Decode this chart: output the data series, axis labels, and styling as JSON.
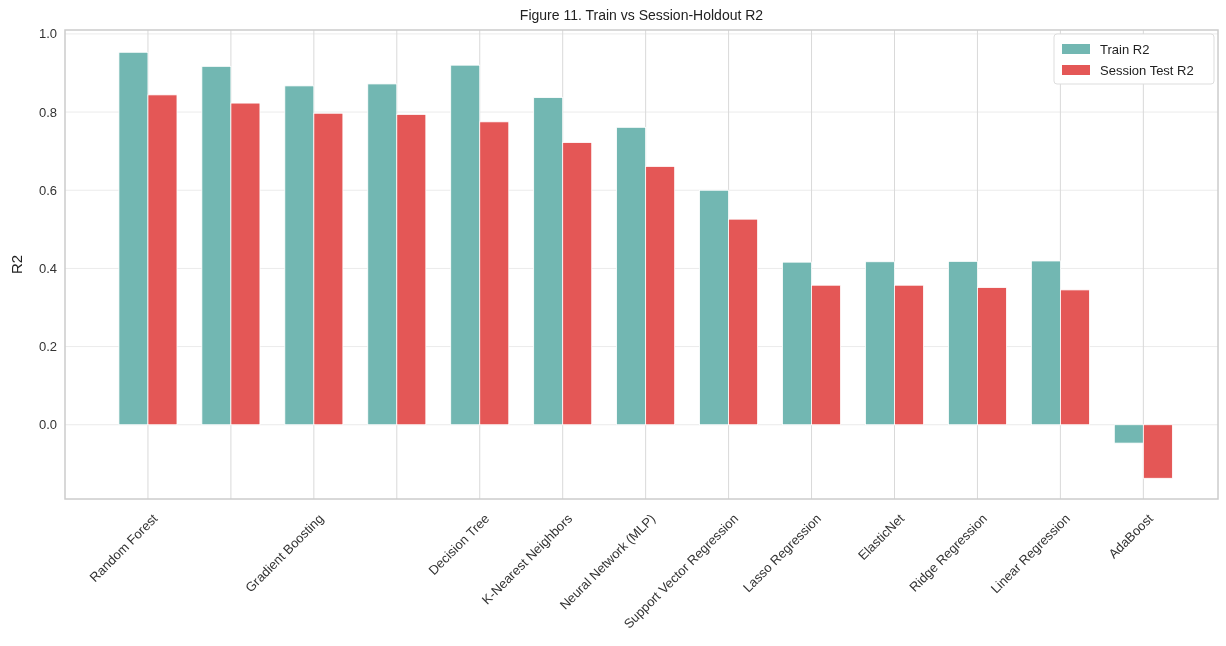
{
  "chart_data": {
    "type": "bar",
    "title": "Figure 11. Train vs Session-Holdout R2",
    "ylabel": "R2",
    "categories": [
      "Random Forest",
      null,
      "Gradient Boosting",
      null,
      "Decision Tree",
      "K-Nearest Neighbors",
      "Neural Network (MLP)",
      "Support Vector Regression",
      "Lasso Regression",
      "ElasticNet",
      "Ridge Regression",
      "Linear Regression",
      "AdaBoost"
    ],
    "series": [
      {
        "name": "Train R2",
        "color": "#72b7b2",
        "values": [
          0.953,
          0.917,
          0.867,
          0.872,
          0.92,
          0.837,
          0.761,
          0.6,
          0.416,
          0.417,
          0.418,
          0.419,
          -0.047
        ]
      },
      {
        "name": "Session Test R2",
        "color": "#e45756",
        "values": [
          0.844,
          0.823,
          0.797,
          0.794,
          0.775,
          0.722,
          0.661,
          0.526,
          0.357,
          0.357,
          0.351,
          0.345,
          -0.137
        ]
      }
    ],
    "ylim": [
      -0.19,
      1.01
    ],
    "yticks": [
      {
        "value": 0,
        "label": "0.0"
      },
      0.2,
      0.4,
      0.6,
      0.8,
      {
        "value": 1,
        "label": "1.0"
      }
    ],
    "grid": true,
    "legend": "top right"
  }
}
